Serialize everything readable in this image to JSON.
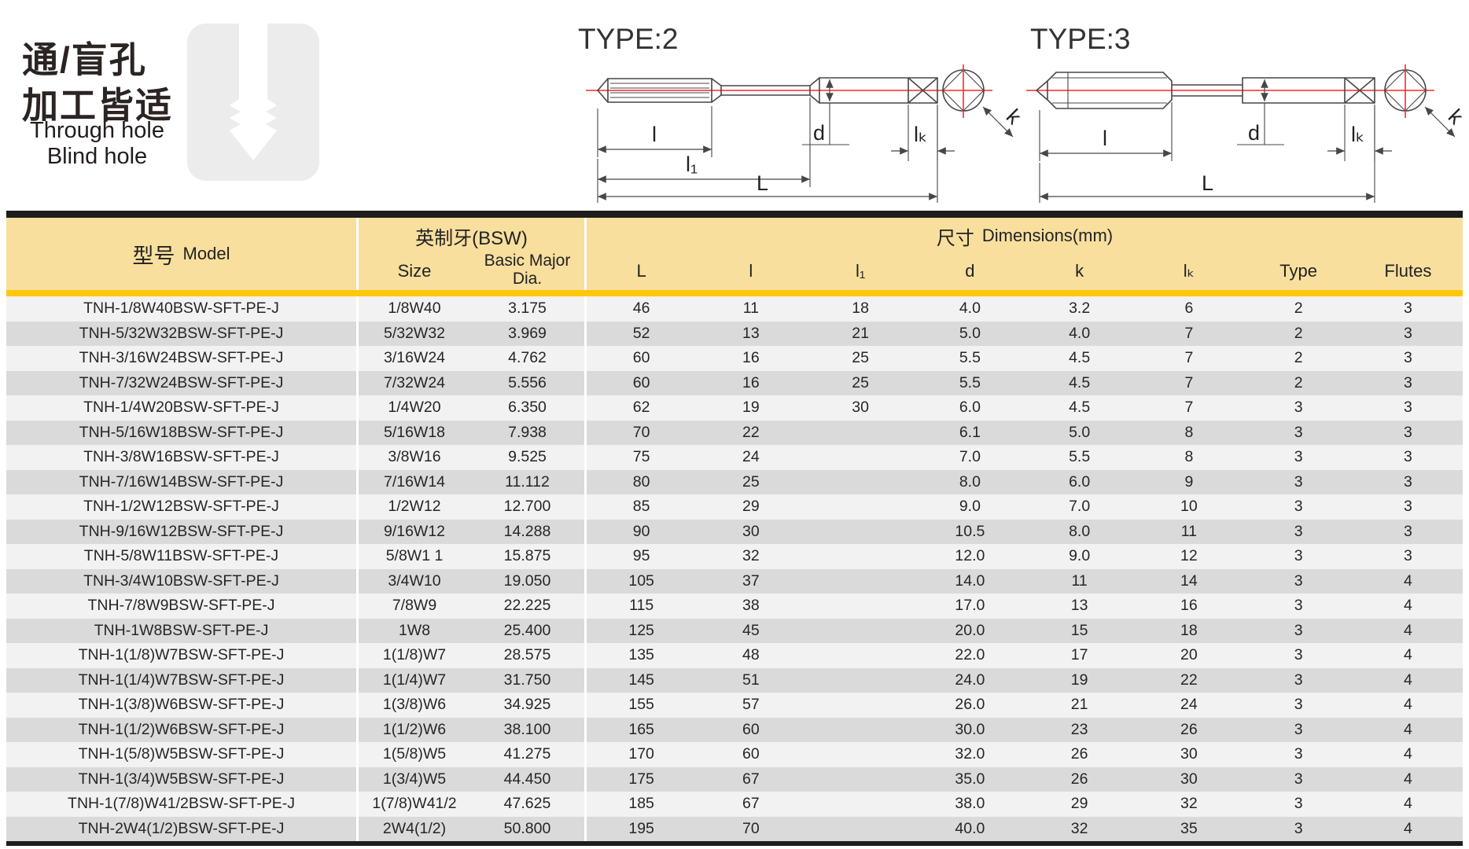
{
  "intro": {
    "cn_line1": "通/盲孔",
    "cn_line2": "加工皆适",
    "en_line1": "Through hole",
    "en_line2": "Blind hole"
  },
  "diagrams": {
    "type2": {
      "label": "TYPE:2"
    },
    "type3": {
      "label": "TYPE:3"
    },
    "dims": {
      "l": "l",
      "l1": "l₁",
      "L": "L",
      "d": "d",
      "k": "k",
      "lk": "lₖ"
    }
  },
  "table": {
    "headers": {
      "model_cn": "型号",
      "model_en": "Model",
      "bsw_group": "英制牙(BSW)",
      "size": "Size",
      "basic_major_line1": "Basic Major",
      "basic_major_line2": "Dia.",
      "dims_cn": "尺寸",
      "dims_en": "Dimensions(mm)",
      "cols": [
        "L",
        "l",
        "l₁",
        "d",
        "k",
        "lₖ",
        "Type",
        "Flutes"
      ]
    },
    "rows": [
      [
        "TNH-1/8W40BSW-SFT-PE-J",
        "1/8W40",
        "3.175",
        "46",
        "11",
        "18",
        "4.0",
        "3.2",
        "6",
        "2",
        "3"
      ],
      [
        "TNH-5/32W32BSW-SFT-PE-J",
        "5/32W32",
        "3.969",
        "52",
        "13",
        "21",
        "5.0",
        "4.0",
        "7",
        "2",
        "3"
      ],
      [
        "TNH-3/16W24BSW-SFT-PE-J",
        "3/16W24",
        "4.762",
        "60",
        "16",
        "25",
        "5.5",
        "4.5",
        "7",
        "2",
        "3"
      ],
      [
        "TNH-7/32W24BSW-SFT-PE-J",
        "7/32W24",
        "5.556",
        "60",
        "16",
        "25",
        "5.5",
        "4.5",
        "7",
        "2",
        "3"
      ],
      [
        "TNH-1/4W20BSW-SFT-PE-J",
        "1/4W20",
        "6.350",
        "62",
        "19",
        "30",
        "6.0",
        "4.5",
        "7",
        "3",
        "3"
      ],
      [
        "TNH-5/16W18BSW-SFT-PE-J",
        "5/16W18",
        "7.938",
        "70",
        "22",
        "",
        "6.1",
        "5.0",
        "8",
        "3",
        "3"
      ],
      [
        "TNH-3/8W16BSW-SFT-PE-J",
        "3/8W16",
        "9.525",
        "75",
        "24",
        "",
        "7.0",
        "5.5",
        "8",
        "3",
        "3"
      ],
      [
        "TNH-7/16W14BSW-SFT-PE-J",
        "7/16W14",
        "11.112",
        "80",
        "25",
        "",
        "8.0",
        "6.0",
        "9",
        "3",
        "3"
      ],
      [
        "TNH-1/2W12BSW-SFT-PE-J",
        "1/2W12",
        "12.700",
        "85",
        "29",
        "",
        "9.0",
        "7.0",
        "10",
        "3",
        "3"
      ],
      [
        "TNH-9/16W12BSW-SFT-PE-J",
        "9/16W12",
        "14.288",
        "90",
        "30",
        "",
        "10.5",
        "8.0",
        "11",
        "3",
        "3"
      ],
      [
        "TNH-5/8W11BSW-SFT-PE-J",
        "5/8W1 1",
        "15.875",
        "95",
        "32",
        "",
        "12.0",
        "9.0",
        "12",
        "3",
        "3"
      ],
      [
        "TNH-3/4W10BSW-SFT-PE-J",
        "3/4W10",
        "19.050",
        "105",
        "37",
        "",
        "14.0",
        "11",
        "14",
        "3",
        "4"
      ],
      [
        "TNH-7/8W9BSW-SFT-PE-J",
        "7/8W9",
        "22.225",
        "115",
        "38",
        "",
        "17.0",
        "13",
        "16",
        "3",
        "4"
      ],
      [
        "TNH-1W8BSW-SFT-PE-J",
        "1W8",
        "25.400",
        "125",
        "45",
        "",
        "20.0",
        "15",
        "18",
        "3",
        "4"
      ],
      [
        "TNH-1(1/8)W7BSW-SFT-PE-J",
        "1(1/8)W7",
        "28.575",
        "135",
        "48",
        "",
        "22.0",
        "17",
        "20",
        "3",
        "4"
      ],
      [
        "TNH-1(1/4)W7BSW-SFT-PE-J",
        "1(1/4)W7",
        "31.750",
        "145",
        "51",
        "",
        "24.0",
        "19",
        "22",
        "3",
        "4"
      ],
      [
        "TNH-1(3/8)W6BSW-SFT-PE-J",
        "1(3/8)W6",
        "34.925",
        "155",
        "57",
        "",
        "26.0",
        "21",
        "24",
        "3",
        "4"
      ],
      [
        "TNH-1(1/2)W6BSW-SFT-PE-J",
        "1(1/2)W6",
        "38.100",
        "165",
        "60",
        "",
        "30.0",
        "23",
        "26",
        "3",
        "4"
      ],
      [
        "TNH-1(5/8)W5BSW-SFT-PE-J",
        "1(5/8)W5",
        "41.275",
        "170",
        "60",
        "",
        "32.0",
        "26",
        "30",
        "3",
        "4"
      ],
      [
        "TNH-1(3/4)W5BSW-SFT-PE-J",
        "1(3/4)W5",
        "44.450",
        "175",
        "67",
        "",
        "35.0",
        "26",
        "30",
        "3",
        "4"
      ],
      [
        "TNH-1(7/8)W41/2BSW-SFT-PE-J",
        "1(7/8)W41/2",
        "47.625",
        "185",
        "67",
        "",
        "38.0",
        "29",
        "32",
        "3",
        "4"
      ],
      [
        "TNH-2W4(1/2)BSW-SFT-PE-J",
        "2W4(1/2)",
        "50.800",
        "195",
        "70",
        "",
        "40.0",
        "32",
        "35",
        "3",
        "4"
      ]
    ]
  },
  "colors": {
    "header_bg": "#F8DF9E",
    "accent_bar": "#FFC70A",
    "row_light": "#F2F2F2",
    "row_dark": "#DADADA",
    "table_border": "#1D1D1D",
    "centerline_red": "#F52A2A",
    "drawing_line": "#474747",
    "icon_gray": "#ECECEC"
  }
}
